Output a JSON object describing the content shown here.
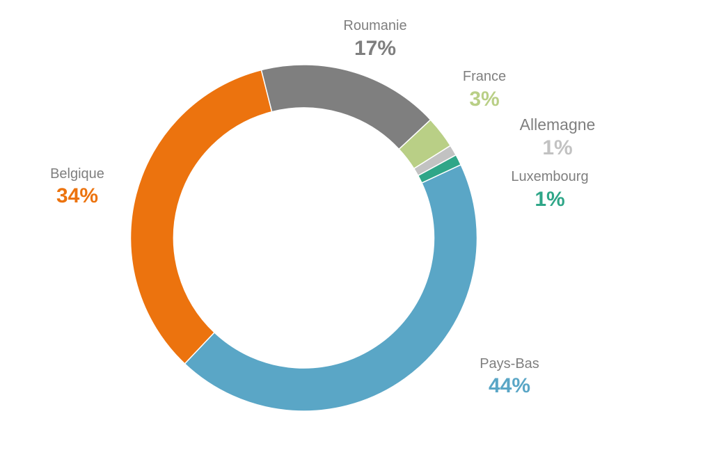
{
  "chart_data": {
    "type": "pie",
    "variant": "donut",
    "title": "",
    "slices": [
      {
        "label": "Pays-Bas",
        "value": 44,
        "display": "44%",
        "color": "#5aa6c6"
      },
      {
        "label": "Belgique",
        "value": 34,
        "display": "34%",
        "color": "#ec730e"
      },
      {
        "label": "Roumanie",
        "value": 17,
        "display": "17%",
        "color": "#7f7f7f"
      },
      {
        "label": "France",
        "value": 3,
        "display": "3%",
        "color": "#b9cf86"
      },
      {
        "label": "Allemagne",
        "value": 1,
        "display": "1%",
        "color": "#c2c2c2"
      },
      {
        "label": "Luxembourg",
        "value": 1,
        "display": "1%",
        "color": "#2fa688"
      }
    ]
  }
}
